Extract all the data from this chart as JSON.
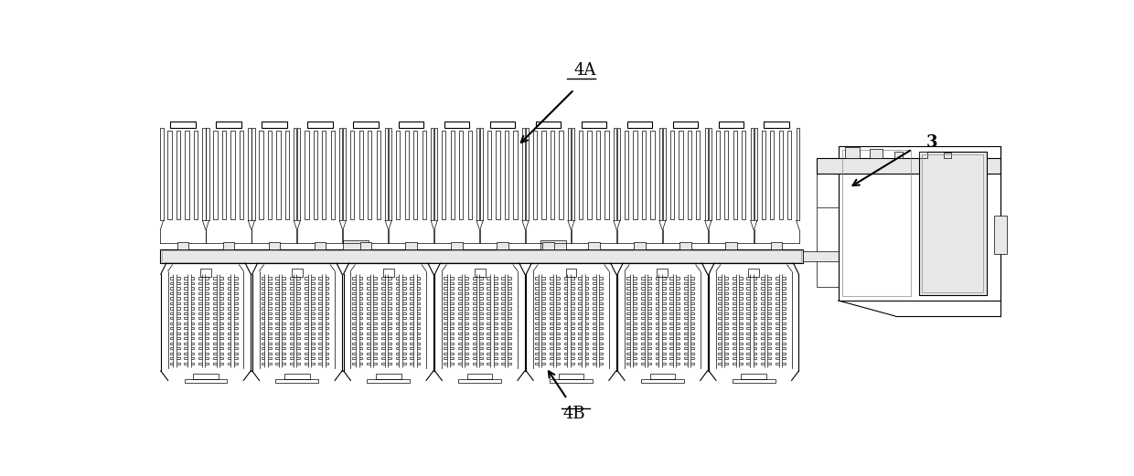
{
  "background_color": "#ffffff",
  "line_color": "#000000",
  "gray_color": "#888888",
  "light_gray": "#cccccc",
  "label_4A": "4A",
  "label_4B": "4B",
  "label_3": "3",
  "fig_width": 12.4,
  "fig_height": 5.21,
  "dpi": 100
}
